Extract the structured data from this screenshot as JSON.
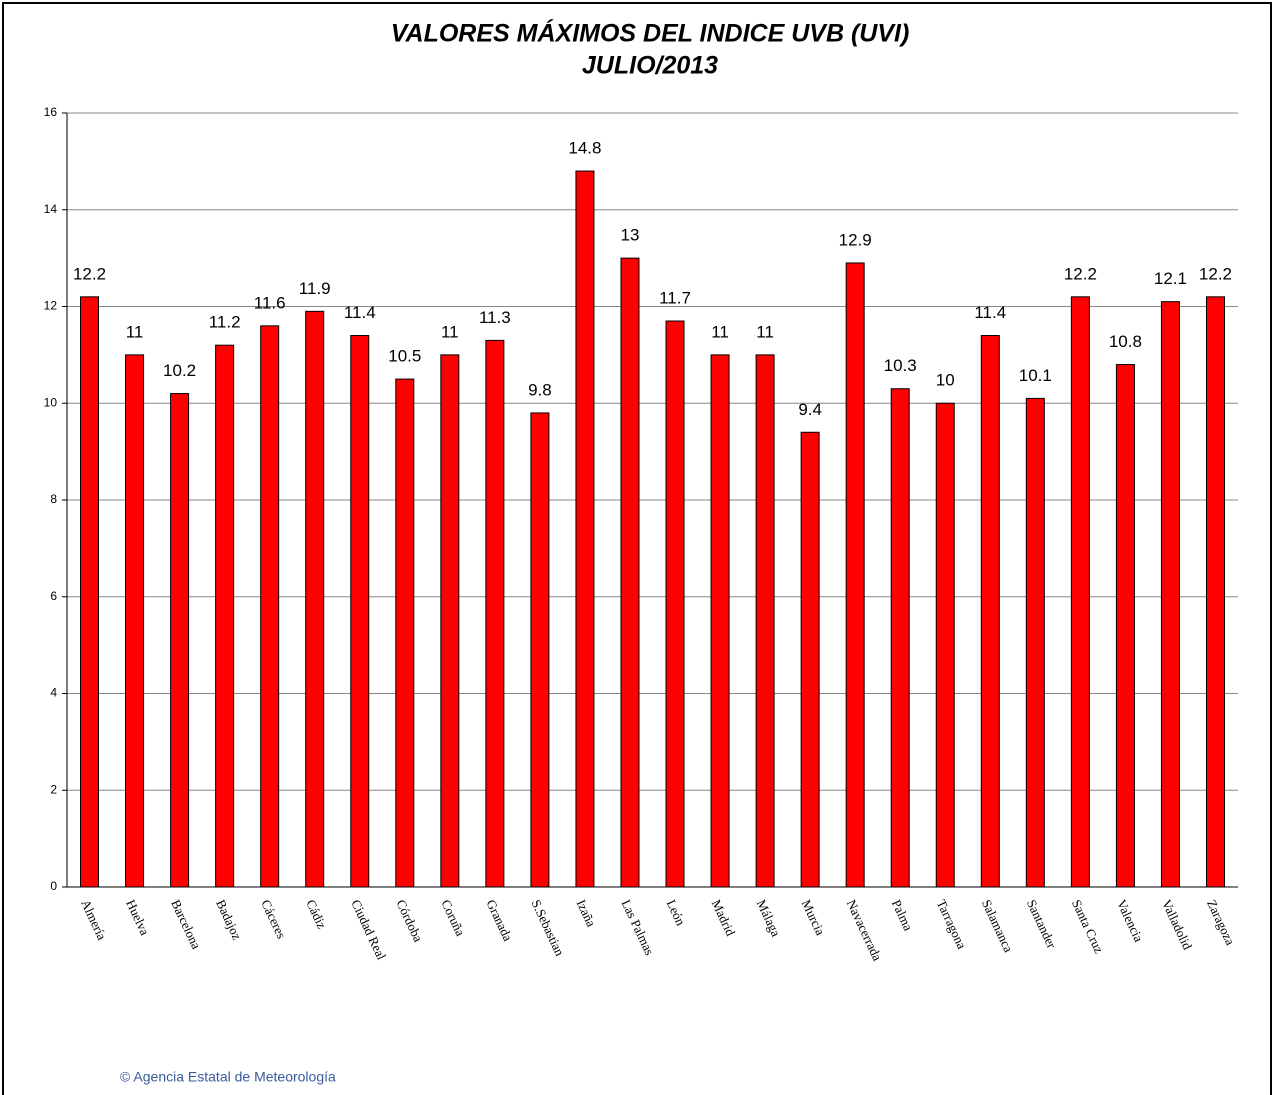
{
  "chart_data": {
    "type": "bar",
    "title": [
      "VALORES MÁXIMOS DEL INDICE UVB (UVI)",
      "JULIO/2013"
    ],
    "categories": [
      "Almería",
      "Huelva",
      "Barcelona",
      "Badajoz",
      "Cáceres",
      "Cádiz",
      "Ciudad Real",
      "Córdoba",
      "Coruña",
      "Granada",
      "S.Sebastian",
      "Izaña",
      "Las Palmas",
      "León",
      "Madrid",
      "Málaga",
      "Murcia",
      "Navacerrada",
      "Palma",
      "Tarragona",
      "Salamanca",
      "Santander",
      "Santa Cruz",
      "Valencia",
      "Valladolid",
      "Zaragoza"
    ],
    "values": [
      12.2,
      11,
      10.2,
      11.2,
      11.6,
      11.9,
      11.4,
      10.5,
      11,
      11.3,
      9.8,
      14.8,
      13,
      11.7,
      11,
      11,
      9.4,
      12.9,
      10.3,
      10,
      11.4,
      10.1,
      12.2,
      10.8,
      12.1,
      12.2
    ],
    "color": "#ff0000",
    "ylim": [
      0,
      16
    ],
    "yticks": [
      0,
      2,
      4,
      6,
      8,
      10,
      12,
      14,
      16
    ],
    "grid": true,
    "source": "© Agencia Estatal de Meteorología"
  }
}
